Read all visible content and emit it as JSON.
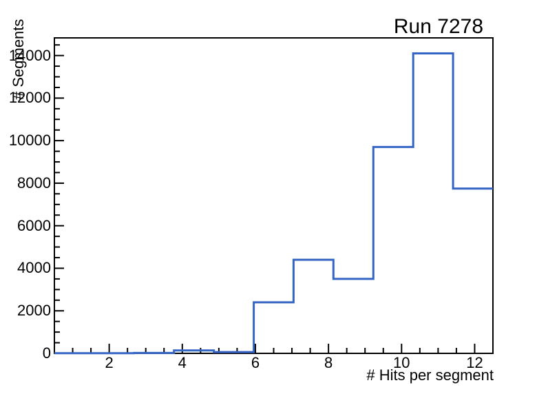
{
  "chart_data": {
    "type": "histogram",
    "title": "Run 7278",
    "xlabel": "# Hits per segment",
    "ylabel": "# Segments",
    "xlim": [
      0.5,
      12.5
    ],
    "ylim": [
      0,
      14830
    ],
    "x_major_ticks": [
      2,
      4,
      6,
      8,
      10,
      12
    ],
    "x_minor_step": 0.5,
    "y_major_ticks": [
      0,
      2000,
      4000,
      6000,
      8000,
      10000,
      12000,
      14000
    ],
    "y_minor_step": 500,
    "bin_edges": [
      0.5,
      1.591,
      2.682,
      3.773,
      4.864,
      5.955,
      7.045,
      8.136,
      9.227,
      10.318,
      11.409,
      12.5
    ],
    "counts": [
      5,
      10,
      20,
      140,
      60,
      2400,
      4400,
      3500,
      9700,
      14100,
      7750
    ],
    "line_color": "#3465c4",
    "frame_color": "#000000",
    "grid": false,
    "legend": null
  }
}
